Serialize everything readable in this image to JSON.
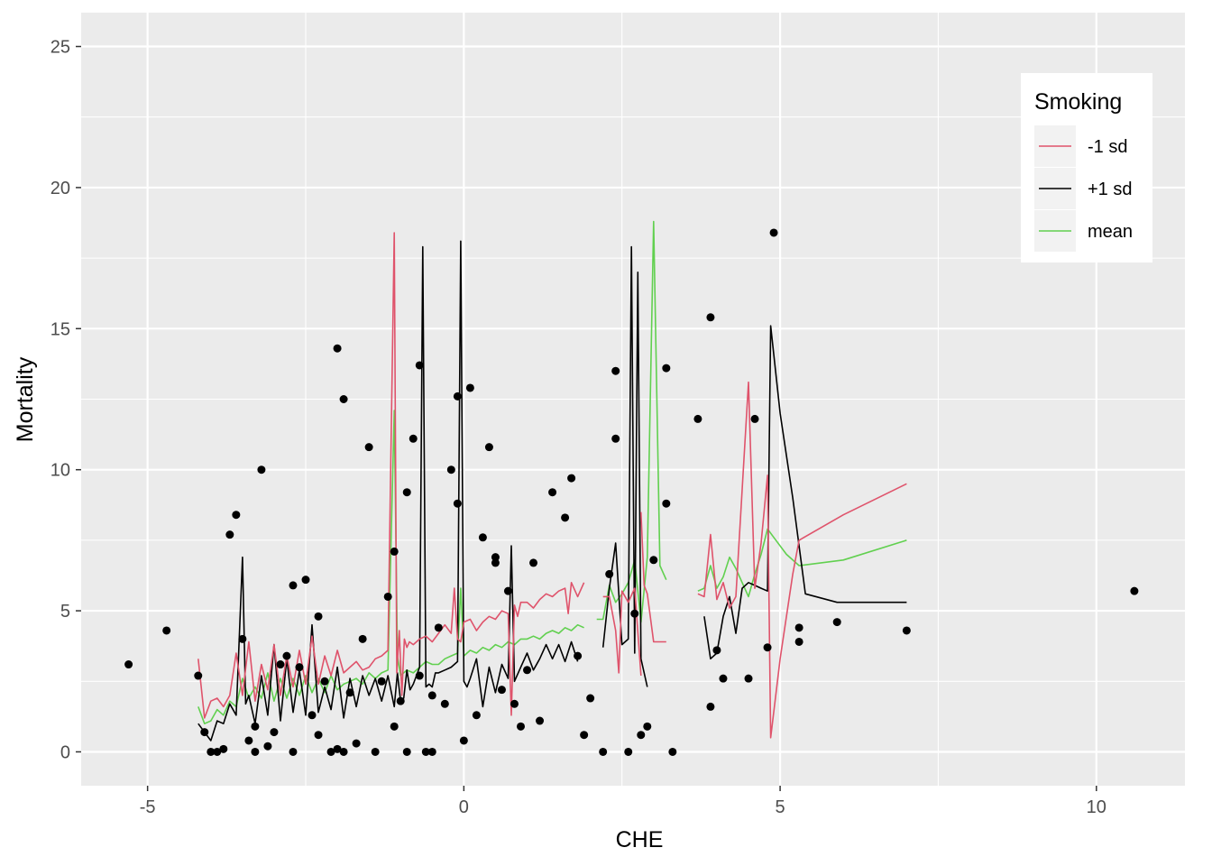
{
  "chart_data": {
    "type": "scatter",
    "title": "",
    "xlabel": "CHE",
    "ylabel": "Mortality",
    "xlim": [
      -6.05,
      11.4
    ],
    "ylim": [
      -1.2,
      26.2
    ],
    "x_ticks": [
      -5,
      0,
      5,
      10
    ],
    "x_tick_labels": [
      "-5",
      "0",
      "5",
      "10"
    ],
    "y_ticks": [
      0,
      5,
      10,
      15,
      20,
      25
    ],
    "y_tick_labels": [
      "0",
      "5",
      "10",
      "15",
      "20",
      "25"
    ],
    "grid": true,
    "background": "#ebebeb",
    "legend": {
      "title": "Smoking",
      "position": "top-right",
      "entries": [
        {
          "label": "-1 sd",
          "color": "#df536b"
        },
        {
          "label": "+1 sd",
          "color": "#000000"
        },
        {
          "label": "mean",
          "color": "#61d04f"
        }
      ]
    },
    "points": {
      "color": "#000000",
      "x": [
        -5.3,
        -4.7,
        -4.2,
        -4.1,
        -4.0,
        -3.9,
        -3.8,
        -3.7,
        -3.6,
        -3.5,
        -3.4,
        -3.3,
        -3.3,
        -3.2,
        -3.1,
        -3.0,
        -2.9,
        -2.8,
        -2.7,
        -2.7,
        -2.6,
        -2.5,
        -2.4,
        -2.3,
        -2.3,
        -2.2,
        -2.1,
        -2.0,
        -2.0,
        -1.9,
        -1.9,
        -1.8,
        -1.7,
        -1.6,
        -1.5,
        -1.4,
        -1.3,
        -1.2,
        -1.1,
        -1.1,
        -1.0,
        -0.9,
        -0.9,
        -0.8,
        -0.7,
        -0.7,
        -0.6,
        -0.5,
        -0.5,
        -0.4,
        -0.3,
        -0.2,
        -0.1,
        -0.1,
        0.0,
        0.1,
        0.2,
        0.3,
        0.4,
        0.5,
        0.5,
        0.6,
        0.7,
        0.8,
        0.9,
        1.0,
        1.1,
        1.2,
        1.4,
        1.6,
        1.7,
        1.8,
        1.9,
        2.0,
        2.2,
        2.3,
        2.4,
        2.4,
        2.6,
        2.7,
        2.8,
        2.9,
        3.0,
        3.2,
        3.2,
        3.3,
        3.7,
        3.9,
        3.9,
        4.0,
        4.1,
        4.5,
        4.6,
        4.8,
        4.9,
        5.3,
        5.3,
        5.9,
        7.0,
        10.6
      ],
      "y": [
        3.1,
        4.3,
        2.7,
        0.7,
        0.0,
        0.0,
        0.1,
        7.7,
        8.4,
        4.0,
        0.4,
        0.9,
        0.0,
        10.0,
        0.2,
        0.7,
        3.1,
        3.4,
        5.9,
        0.0,
        3.0,
        6.1,
        1.3,
        4.8,
        0.6,
        2.5,
        0.0,
        14.3,
        0.1,
        0.0,
        12.5,
        2.1,
        0.3,
        4.0,
        10.8,
        0.0,
        2.5,
        5.5,
        0.9,
        7.1,
        1.8,
        0.0,
        9.2,
        11.1,
        2.7,
        13.7,
        0.0,
        0.0,
        2.0,
        4.4,
        1.7,
        10.0,
        8.8,
        12.6,
        0.4,
        12.9,
        1.3,
        7.6,
        10.8,
        6.7,
        6.9,
        2.2,
        5.7,
        1.7,
        0.9,
        2.9,
        6.7,
        1.1,
        9.2,
        8.3,
        9.7,
        3.4,
        0.6,
        1.9,
        0.0,
        6.3,
        13.5,
        11.1,
        0.0,
        4.9,
        0.6,
        0.9,
        6.8,
        13.6,
        8.8,
        0.0,
        11.8,
        15.4,
        1.6,
        3.6,
        2.6,
        2.6,
        11.8,
        3.7,
        18.4,
        4.4,
        3.9,
        4.6,
        4.3,
        5.7
      ]
    },
    "series": [
      {
        "name": "-1 sd",
        "color": "#df536b",
        "segments": [
          {
            "x": [
              -4.2,
              -4.1,
              -4.0,
              -3.9,
              -3.8,
              -3.7,
              -3.6,
              -3.5,
              -3.4,
              -3.3,
              -3.2,
              -3.1,
              -3.0,
              -2.9,
              -2.8,
              -2.7,
              -2.6,
              -2.5,
              -2.4,
              -2.3,
              -2.2,
              -2.1,
              -2.0,
              -1.9,
              -1.8,
              -1.7,
              -1.6,
              -1.5,
              -1.4,
              -1.3,
              -1.2,
              -1.1,
              -1.06,
              -1.02,
              -0.98,
              -0.94,
              -0.9,
              -0.86,
              -0.8,
              -0.7,
              -0.6,
              -0.5,
              -0.4,
              -0.3,
              -0.2,
              -0.15,
              -0.1,
              -0.05,
              0.0,
              0.1,
              0.2,
              0.3,
              0.4,
              0.5,
              0.6,
              0.7,
              0.75,
              0.8,
              0.85,
              0.9,
              1.0,
              1.1,
              1.2,
              1.3,
              1.4,
              1.5,
              1.6,
              1.65,
              1.7,
              1.8,
              1.9
            ],
            "y": [
              3.3,
              1.2,
              1.8,
              1.9,
              1.6,
              2.0,
              3.5,
              2.0,
              3.9,
              1.8,
              3.1,
              2.2,
              3.8,
              2.0,
              3.4,
              2.3,
              3.6,
              2.4,
              4.1,
              2.4,
              3.4,
              2.7,
              3.6,
              2.8,
              3.0,
              3.2,
              2.9,
              3.0,
              3.3,
              3.4,
              3.6,
              18.4,
              2.8,
              4.3,
              2.0,
              4.0,
              3.7,
              3.9,
              3.8,
              4.0,
              4.1,
              3.9,
              4.2,
              4.5,
              4.2,
              5.8,
              4.0,
              3.9,
              4.6,
              4.7,
              4.3,
              4.6,
              4.8,
              4.7,
              5.0,
              4.9,
              1.3,
              5.2,
              4.8,
              5.3,
              5.3,
              5.1,
              5.4,
              5.6,
              5.5,
              5.7,
              5.8,
              4.9,
              6.0,
              5.5,
              6.0
            ]
          },
          {
            "x": [
              2.2,
              2.3,
              2.4,
              2.45,
              2.5,
              2.6,
              2.7,
              2.8
            ],
            "y": [
              5.5,
              5.5,
              4.3,
              2.8,
              5.7,
              5.3,
              5.8,
              2.7
            ]
          },
          {
            "x": [
              2.8,
              2.85,
              2.9,
              3.0,
              3.1,
              3.2
            ],
            "y": [
              8.5,
              5.9,
              5.6,
              3.9,
              3.9,
              3.9
            ]
          },
          {
            "x": [
              3.7,
              3.8,
              3.9,
              4.0,
              4.1,
              4.2,
              4.3,
              4.4,
              4.5,
              4.6,
              4.7,
              4.8,
              4.85,
              5.0,
              5.2,
              5.3,
              6.0,
              7.0
            ],
            "y": [
              5.6,
              5.5,
              7.7,
              5.4,
              6.0,
              5.1,
              5.5,
              9.3,
              13.1,
              5.8,
              7.4,
              9.8,
              0.5,
              3.3,
              6.3,
              7.5,
              8.4,
              9.5
            ]
          }
        ]
      },
      {
        "name": "+1 sd",
        "color": "#000000",
        "segments": [
          {
            "x": [
              -4.2,
              -4.1,
              -4.0,
              -3.9,
              -3.8,
              -3.7,
              -3.6,
              -3.5,
              -3.45,
              -3.4,
              -3.3,
              -3.2,
              -3.1,
              -3.0,
              -2.9,
              -2.8,
              -2.7,
              -2.6,
              -2.5,
              -2.4,
              -2.3,
              -2.2,
              -2.1,
              -2.0,
              -1.9,
              -1.8,
              -1.7,
              -1.6,
              -1.5,
              -1.4,
              -1.3,
              -1.2,
              -1.1,
              -1.05,
              -1.0,
              -0.95,
              -0.9,
              -0.85,
              -0.8,
              -0.7,
              -0.65,
              -0.6,
              -0.55,
              -0.5,
              -0.45,
              -0.4,
              -0.3,
              -0.2,
              -0.1,
              -0.05,
              0.0,
              0.05,
              0.1,
              0.2,
              0.3,
              0.4,
              0.5,
              0.6,
              0.7,
              0.75,
              0.8,
              0.9,
              1.0,
              1.1,
              1.2,
              1.3,
              1.4,
              1.5,
              1.6,
              1.7,
              1.8
            ],
            "y": [
              1.0,
              0.7,
              0.4,
              1.1,
              1.0,
              1.7,
              1.3,
              6.9,
              1.7,
              2.0,
              1.0,
              2.7,
              1.3,
              3.8,
              1.1,
              3.3,
              1.4,
              2.9,
              1.3,
              4.5,
              1.4,
              2.3,
              1.5,
              3.0,
              1.2,
              2.6,
              1.6,
              2.7,
              2.0,
              2.6,
              1.8,
              2.7,
              1.6,
              2.8,
              1.8,
              1.9,
              2.9,
              2.2,
              2.4,
              3.0,
              17.9,
              2.3,
              2.4,
              2.3,
              2.8,
              2.8,
              2.9,
              3.0,
              3.2,
              18.1,
              2.5,
              2.3,
              2.6,
              3.3,
              1.6,
              3.0,
              2.1,
              3.1,
              2.6,
              7.3,
              2.5,
              3.0,
              3.5,
              2.9,
              3.3,
              3.8,
              3.3,
              3.8,
              3.2,
              3.9,
              3.2
            ]
          },
          {
            "x": [
              2.2,
              2.3,
              2.4,
              2.5,
              2.6,
              2.65,
              2.7,
              2.75,
              2.8,
              2.9
            ],
            "y": [
              3.7,
              5.8,
              7.4,
              3.8,
              4.0,
              17.9,
              3.5,
              17.0,
              3.3,
              2.3
            ]
          },
          {
            "x": [
              3.8,
              3.9,
              4.0,
              4.1,
              4.2,
              4.3,
              4.4,
              4.5,
              4.6,
              4.7,
              4.8,
              4.85,
              5.0,
              5.2,
              5.4,
              5.9,
              7.0
            ],
            "y": [
              4.8,
              3.3,
              3.5,
              4.8,
              5.5,
              4.2,
              5.8,
              6.0,
              5.9,
              5.8,
              5.7,
              15.1,
              12.0,
              9.0,
              5.6,
              5.3,
              5.3
            ]
          }
        ]
      },
      {
        "name": "mean",
        "color": "#61d04f",
        "segments": [
          {
            "x": [
              -4.2,
              -4.1,
              -4.0,
              -3.9,
              -3.8,
              -3.7,
              -3.6,
              -3.5,
              -3.4,
              -3.3,
              -3.2,
              -3.1,
              -3.0,
              -2.9,
              -2.8,
              -2.7,
              -2.6,
              -2.5,
              -2.4,
              -2.3,
              -2.2,
              -2.1,
              -2.0,
              -1.9,
              -1.8,
              -1.7,
              -1.6,
              -1.5,
              -1.4,
              -1.3,
              -1.2,
              -1.1,
              -1.05,
              -1.0,
              -0.9,
              -0.8,
              -0.7,
              -0.6,
              -0.5,
              -0.4,
              -0.3,
              -0.2,
              -0.1,
              -0.05,
              0.0,
              0.1,
              0.2,
              0.3,
              0.4,
              0.5,
              0.6,
              0.7,
              0.8,
              0.9,
              1.0,
              1.1,
              1.2,
              1.3,
              1.4,
              1.5,
              1.6,
              1.7,
              1.8,
              1.9
            ],
            "y": [
              1.6,
              1.0,
              1.1,
              1.5,
              1.3,
              1.8,
              1.6,
              2.6,
              1.9,
              2.3,
              1.9,
              2.8,
              1.8,
              2.6,
              1.9,
              2.6,
              2.0,
              2.7,
              2.1,
              2.6,
              2.1,
              2.7,
              2.2,
              2.4,
              2.5,
              2.6,
              2.4,
              2.8,
              2.6,
              2.8,
              2.9,
              12.1,
              3.4,
              2.7,
              2.9,
              2.8,
              3.0,
              3.2,
              3.1,
              3.1,
              3.3,
              3.4,
              3.5,
              5.8,
              3.4,
              3.6,
              3.5,
              3.7,
              3.6,
              3.8,
              3.7,
              3.9,
              3.8,
              4.0,
              4.0,
              4.1,
              4.0,
              4.2,
              4.3,
              4.2,
              4.4,
              4.3,
              4.5,
              4.4
            ]
          },
          {
            "x": [
              2.1,
              2.2,
              2.3,
              2.4,
              2.5,
              2.6,
              2.7,
              2.8,
              2.9,
              3.0,
              3.1,
              3.2
            ],
            "y": [
              4.7,
              4.7,
              5.9,
              5.3,
              5.6,
              6.0,
              6.8,
              4.6,
              6.9,
              18.8,
              6.6,
              6.1
            ]
          },
          {
            "x": [
              3.7,
              3.8,
              3.9,
              4.0,
              4.1,
              4.2,
              4.3,
              4.4,
              4.5,
              4.6,
              4.7,
              4.8,
              4.9,
              5.1,
              5.3,
              6.0,
              7.0
            ],
            "y": [
              5.7,
              5.8,
              6.6,
              5.8,
              6.2,
              6.9,
              6.5,
              6.0,
              5.5,
              6.3,
              7.0,
              7.9,
              7.6,
              7.0,
              6.6,
              6.8,
              7.5
            ]
          }
        ]
      }
    ]
  }
}
